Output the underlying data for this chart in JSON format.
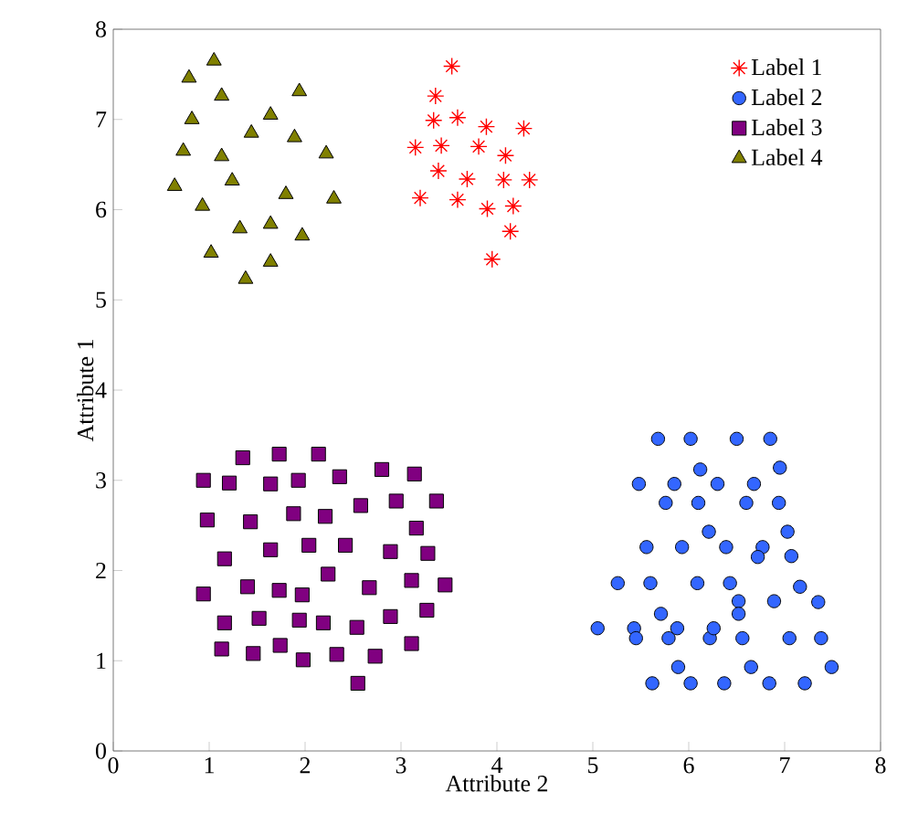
{
  "chart_data": {
    "type": "scatter",
    "xlabel": "Attribute 2",
    "ylabel": "Attribute 1",
    "xlim": [
      0,
      8
    ],
    "ylim": [
      0,
      8
    ],
    "xticks": [
      0,
      1,
      2,
      3,
      4,
      5,
      6,
      7,
      8
    ],
    "yticks": [
      0,
      1,
      2,
      3,
      4,
      5,
      6,
      7,
      8
    ],
    "grid": false,
    "legend": "top right",
    "series": [
      {
        "name": "Label 1",
        "color": "#ff0000",
        "marker": "cross",
        "x": [
          3.53,
          3.36,
          3.34,
          3.59,
          3.89,
          4.28,
          3.15,
          3.42,
          3.81,
          4.09,
          3.39,
          3.69,
          4.07,
          4.34,
          3.2,
          3.59,
          3.9,
          4.17,
          4.14,
          3.95
        ],
        "values": [
          7.59,
          7.26,
          6.99,
          7.02,
          6.92,
          6.9,
          6.69,
          6.71,
          6.7,
          6.6,
          6.43,
          6.34,
          6.33,
          6.33,
          6.13,
          6.11,
          6.01,
          6.04,
          5.76,
          5.45
        ]
      },
      {
        "name": "Label 2",
        "color": "#3366ff",
        "marker": "circle",
        "x": [
          5.68,
          6.02,
          6.5,
          6.85,
          6.12,
          6.95,
          5.48,
          5.85,
          6.3,
          6.68,
          5.76,
          6.1,
          6.6,
          6.94,
          6.21,
          7.03,
          5.56,
          5.93,
          6.39,
          6.77,
          6.72,
          7.07,
          5.26,
          5.6,
          6.09,
          6.43,
          7.16,
          6.52,
          6.89,
          7.35,
          5.71,
          6.52,
          5.05,
          5.43,
          5.45,
          5.79,
          5.88,
          6.22,
          6.26,
          6.56,
          7.05,
          7.38,
          5.89,
          6.65,
          7.49,
          5.62,
          6.02,
          6.37,
          6.84,
          7.21
        ],
        "values": [
          3.46,
          3.46,
          3.46,
          3.46,
          3.12,
          3.14,
          2.96,
          2.96,
          2.96,
          2.96,
          2.75,
          2.75,
          2.75,
          2.75,
          2.43,
          2.43,
          2.26,
          2.26,
          2.26,
          2.26,
          2.15,
          2.16,
          1.86,
          1.86,
          1.86,
          1.86,
          1.82,
          1.66,
          1.66,
          1.65,
          1.52,
          1.52,
          1.36,
          1.36,
          1.25,
          1.25,
          1.36,
          1.25,
          1.36,
          1.25,
          1.25,
          1.25,
          0.93,
          0.93,
          0.93,
          0.75,
          0.75,
          0.75,
          0.75,
          0.75
        ]
      },
      {
        "name": "Label 3",
        "color": "#800080",
        "marker": "square",
        "x": [
          1.35,
          1.73,
          2.14,
          0.94,
          1.21,
          1.64,
          1.93,
          2.36,
          2.8,
          3.14,
          0.98,
          1.43,
          1.88,
          2.21,
          2.58,
          2.95,
          3.37,
          3.16,
          1.16,
          1.64,
          2.04,
          2.42,
          2.89,
          3.28,
          2.24,
          0.94,
          1.4,
          1.73,
          1.97,
          2.67,
          3.11,
          3.46,
          1.16,
          1.52,
          1.94,
          2.19,
          2.54,
          2.89,
          3.27,
          1.13,
          1.46,
          1.74,
          1.98,
          2.33,
          2.73,
          3.11,
          2.55
        ],
        "values": [
          3.25,
          3.29,
          3.29,
          3.0,
          2.97,
          2.96,
          3.0,
          3.04,
          3.12,
          3.07,
          2.56,
          2.54,
          2.63,
          2.6,
          2.72,
          2.77,
          2.77,
          2.47,
          2.13,
          2.23,
          2.28,
          2.28,
          2.21,
          2.19,
          1.96,
          1.74,
          1.82,
          1.78,
          1.73,
          1.81,
          1.89,
          1.84,
          1.42,
          1.47,
          1.45,
          1.42,
          1.37,
          1.49,
          1.56,
          1.13,
          1.08,
          1.17,
          1.01,
          1.07,
          1.05,
          1.19,
          0.75
        ]
      },
      {
        "name": "Label 4",
        "color": "#808000",
        "marker": "triangle",
        "x": [
          1.05,
          0.79,
          1.13,
          1.94,
          0.82,
          1.64,
          1.44,
          1.89,
          0.73,
          1.13,
          2.22,
          0.64,
          1.24,
          0.93,
          1.8,
          2.3,
          1.32,
          1.64,
          1.97,
          1.02,
          1.64,
          1.38
        ],
        "values": [
          7.65,
          7.46,
          7.26,
          7.31,
          7.0,
          7.05,
          6.85,
          6.8,
          6.65,
          6.59,
          6.62,
          6.26,
          6.32,
          6.04,
          6.17,
          6.12,
          5.79,
          5.84,
          5.71,
          5.52,
          5.42,
          5.23
        ]
      }
    ]
  }
}
